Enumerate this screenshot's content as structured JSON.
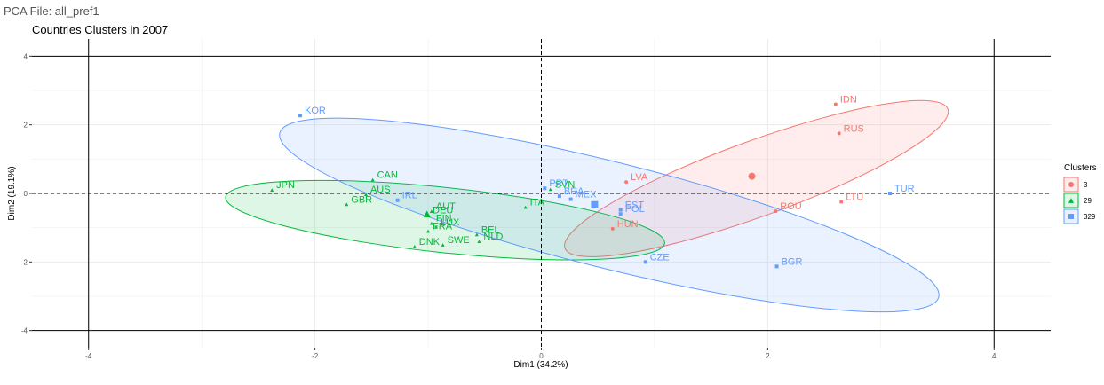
{
  "page_title": "PCA File: all_pref1",
  "chart_data": {
    "type": "scatter",
    "title": "Countries Clusters in 2007",
    "xlabel": "Dim1 (34.2%)",
    "ylabel": "Dim2 (19.1%)",
    "xlim": [
      -4.5,
      4.5
    ],
    "ylim": [
      -4.5,
      4.5
    ],
    "xticks": [
      -4,
      -2,
      0,
      2,
      4
    ],
    "yticks": [
      -4,
      -2,
      0,
      2,
      4
    ],
    "xtick_labels": [
      "-4",
      "-2",
      "0",
      "2",
      "4"
    ],
    "ytick_labels": [
      "-4",
      "-2",
      "0",
      "2",
      "4"
    ],
    "grid": true,
    "legend_title": "Clusters",
    "legend_position": "right",
    "series": [
      {
        "name": "3",
        "color": "#F8766D",
        "marker": "circle",
        "ellipse": {
          "cx": 1.9,
          "cy": 0.43,
          "rx": 1.8,
          "ry": 1.1,
          "angle": 20
        },
        "centroid": [
          1.86,
          0.5
        ],
        "points": [
          {
            "label": "IDN",
            "x": 2.6,
            "y": 2.6
          },
          {
            "label": "RUS",
            "x": 2.63,
            "y": 1.75
          },
          {
            "label": "LVA",
            "x": 0.75,
            "y": 0.33
          },
          {
            "label": "ROU",
            "x": 2.07,
            "y": -0.52
          },
          {
            "label": "LTU",
            "x": 2.65,
            "y": -0.25
          },
          {
            "label": "HUN",
            "x": 0.63,
            "y": -1.03
          }
        ]
      },
      {
        "name": "29",
        "color": "#00BA38",
        "marker": "triangle",
        "ellipse": {
          "cx": -0.85,
          "cy": -0.78,
          "rx": 1.95,
          "ry": 0.95,
          "angle": -6
        },
        "centroid": [
          -1.01,
          -0.6
        ],
        "points": [
          {
            "label": "JPN",
            "x": -2.38,
            "y": 0.1
          },
          {
            "label": "CAN",
            "x": -1.49,
            "y": 0.4
          },
          {
            "label": "AUS",
            "x": -1.55,
            "y": -0.03
          },
          {
            "label": "GBR",
            "x": -1.72,
            "y": -0.32
          },
          {
            "label": "DEU",
            "x": -1.0,
            "y": -0.64
          },
          {
            "label": "AUT",
            "x": -0.97,
            "y": -0.52
          },
          {
            "label": "FIN",
            "x": -0.97,
            "y": -0.87
          },
          {
            "label": "LUX",
            "x": -0.93,
            "y": -0.98
          },
          {
            "label": "FRA",
            "x": -1.0,
            "y": -1.1
          },
          {
            "label": "BEL",
            "x": -0.57,
            "y": -1.2
          },
          {
            "label": "SWE",
            "x": -0.87,
            "y": -1.5
          },
          {
            "label": "NLD",
            "x": -0.55,
            "y": -1.4
          },
          {
            "label": "DNK",
            "x": -1.12,
            "y": -1.55
          },
          {
            "label": "ITA",
            "x": -0.14,
            "y": -0.4
          },
          {
            "label": "SVN",
            "x": 0.08,
            "y": 0.12
          }
        ]
      },
      {
        "name": "329",
        "color": "#619CFF",
        "marker": "square",
        "ellipse": {
          "cx": 0.6,
          "cy": -0.63,
          "rx": 3.0,
          "ry": 1.55,
          "angle": -14
        },
        "centroid": [
          0.47,
          -0.33
        ],
        "points": [
          {
            "label": "KOR",
            "x": -2.13,
            "y": 2.27
          },
          {
            "label": "IRL",
            "x": -1.27,
            "y": -0.2
          },
          {
            "label": "PRT",
            "x": 0.03,
            "y": 0.15
          },
          {
            "label": "BRA",
            "x": 0.16,
            "y": -0.08
          },
          {
            "label": "MEX",
            "x": 0.26,
            "y": -0.17
          },
          {
            "label": "EST",
            "x": 0.7,
            "y": -0.48
          },
          {
            "label": "POL",
            "x": 0.7,
            "y": -0.6
          },
          {
            "label": "CZE",
            "x": 0.92,
            "y": -2.0
          },
          {
            "label": "BGR",
            "x": 2.08,
            "y": -2.13
          },
          {
            "label": "TUR",
            "x": 3.08,
            "y": 0.0
          }
        ]
      }
    ]
  }
}
